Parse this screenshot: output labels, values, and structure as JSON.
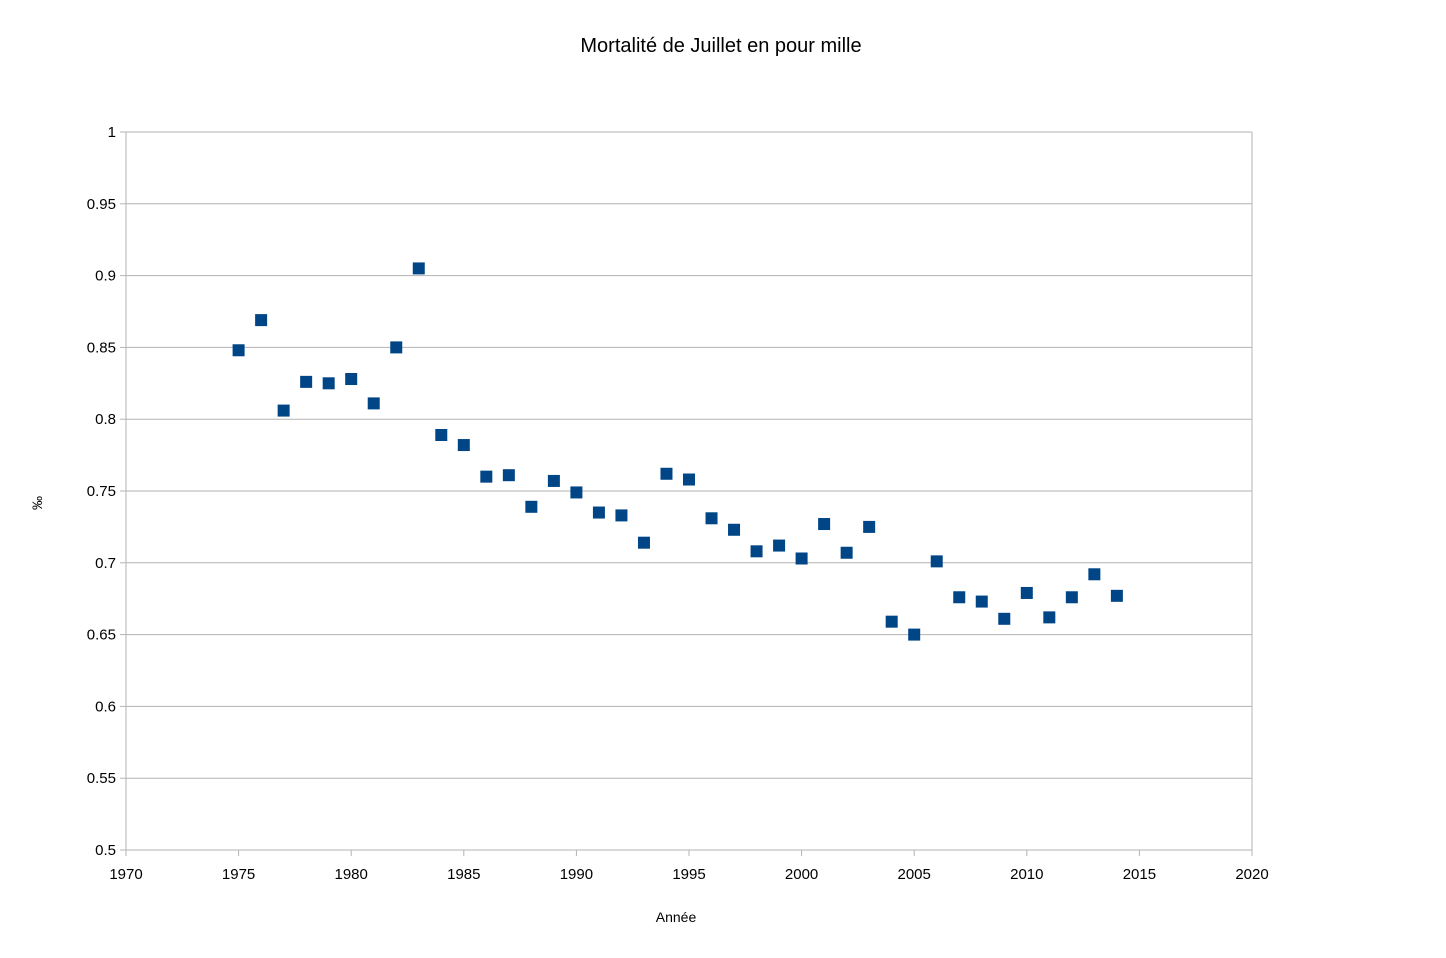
{
  "chart_data": {
    "type": "scatter",
    "title": "Mortalité de Juillet en pour mille",
    "xlabel": "Année",
    "ylabel": "‰",
    "xlim": [
      1970,
      2020
    ],
    "ylim": [
      0.5,
      1
    ],
    "xticks": [
      1970,
      1975,
      1980,
      1985,
      1990,
      1995,
      2000,
      2005,
      2010,
      2015,
      2020
    ],
    "yticks": [
      0.5,
      0.55,
      0.6,
      0.65,
      0.7,
      0.75,
      0.8,
      0.85,
      0.9,
      0.95,
      1
    ],
    "ytick_labels": [
      "0.5",
      "0.55",
      "0.6",
      "0.65",
      "0.7",
      "0.75",
      "0.8",
      "0.85",
      "0.9",
      "0.95",
      "1"
    ],
    "grid": "horizontal",
    "marker": "square",
    "series_color": "#004586",
    "grid_color": "#b3b3b3",
    "series": [
      {
        "x": [
          1975,
          1976,
          1977,
          1978,
          1979,
          1980,
          1981,
          1982,
          1983,
          1984,
          1985,
          1986,
          1987,
          1988,
          1989,
          1990,
          1991,
          1992,
          1993,
          1994,
          1995,
          1996,
          1997,
          1998,
          1999,
          2000,
          2001,
          2002,
          2003,
          2004,
          2005,
          2006,
          2007,
          2008,
          2009,
          2010,
          2011,
          2012,
          2013,
          2014
        ],
        "y": [
          0.848,
          0.869,
          0.806,
          0.826,
          0.825,
          0.828,
          0.811,
          0.85,
          0.905,
          0.789,
          0.782,
          0.76,
          0.761,
          0.739,
          0.757,
          0.749,
          0.735,
          0.733,
          0.714,
          0.762,
          0.758,
          0.731,
          0.723,
          0.708,
          0.712,
          0.703,
          0.727,
          0.707,
          0.725,
          0.659,
          0.65,
          0.701,
          0.676,
          0.673,
          0.661,
          0.679,
          0.662,
          0.676,
          0.692,
          0.677
        ]
      }
    ]
  }
}
